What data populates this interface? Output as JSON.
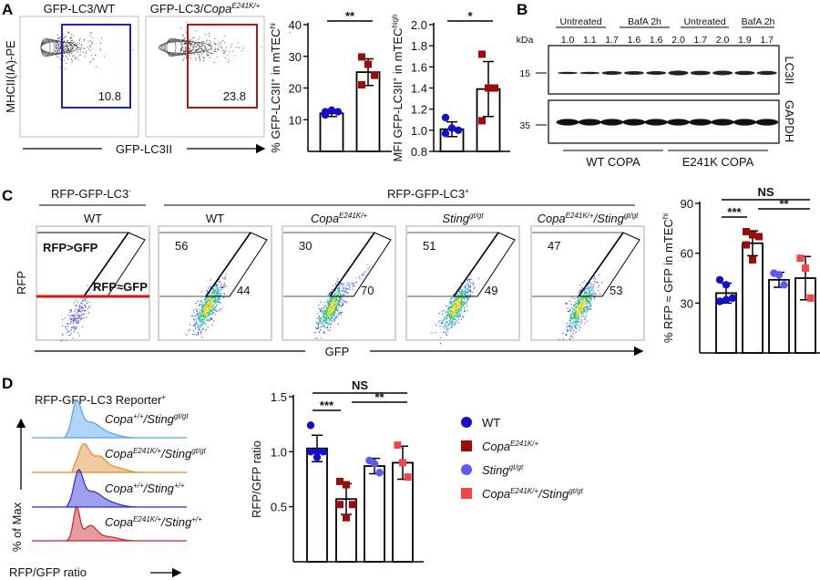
{
  "panels": {
    "A": "A",
    "B": "B",
    "C": "C",
    "D": "D"
  },
  "panelA": {
    "flow_titles": [
      {
        "base": "GFP-LC3/WT",
        "sup": ""
      },
      {
        "base": "GFP-LC3/",
        "italic": "Copa",
        "sup": "E241K/+"
      }
    ],
    "gate_values": [
      "10.8",
      "23.8"
    ],
    "gate_colors": [
      "#1f22c8",
      "#b01818"
    ],
    "xlabel": "GFP-LC3II",
    "ylabel": "MHCII(IA)-PE"
  },
  "panelB": {
    "treatments": [
      "Untreated",
      "BafA 2h",
      "Untreated",
      "BafA 2h"
    ],
    "kda_label": "kDa",
    "ratios": [
      "1.0",
      "1.1",
      "1.7",
      "1.6",
      "1.6",
      "2.0",
      "1.7",
      "2.0",
      "1.9",
      "1.7"
    ],
    "markers": [
      "15",
      "35"
    ],
    "blots": [
      "LC3II",
      "GAPDH"
    ],
    "groups": [
      "WT COPA",
      "E241K COPA"
    ]
  },
  "panelC": {
    "neg_header": {
      "base": "RFP-GFP-LC3",
      "sup": "-"
    },
    "pos_header": {
      "base": "RFP-GFP-LC3",
      "sup": "+"
    },
    "plot_titles": [
      {
        "a": "WT",
        "asup": "",
        "b": "",
        "bsup": ""
      },
      {
        "a": "WT",
        "asup": "",
        "b": "",
        "bsup": ""
      },
      {
        "a": "Copa",
        "asup": "E241K/+",
        "b": "",
        "bsup": ""
      },
      {
        "a": "Sting",
        "asup": "gt/gt",
        "b": "",
        "bsup": ""
      },
      {
        "a": "Copa",
        "asup": "E241K/+",
        "b": "/Sting",
        "bsup": "gt/gt"
      }
    ],
    "gate_labels": [
      "RFP>GFP",
      "RFP≈GFP"
    ],
    "upper_values": [
      "",
      "56",
      "30",
      "51",
      "47"
    ],
    "lower_values": [
      "",
      "44",
      "70",
      "49",
      "53"
    ],
    "xlabel": "GFP",
    "ylabel": "RFP"
  },
  "panelD": {
    "title": {
      "base": "RFP-GFP-LC3 Reporter",
      "sup": "+"
    },
    "histograms": [
      {
        "a": "Copa",
        "asup": "+/+",
        "b": "/Sting",
        "bsup": "gt/gt",
        "color": "#4da3f0"
      },
      {
        "a": "Copa",
        "asup": "E241K/+",
        "b": "/Sting",
        "bsup": "gt/gt",
        "color": "#e08a2c"
      },
      {
        "a": "Copa",
        "asup": "+/+",
        "b": "/Sting",
        "bsup": "+/+",
        "color": "#2a2ad8"
      },
      {
        "a": "Copa",
        "asup": "E241K/+",
        "b": "/Sting",
        "bsup": "+/+",
        "color": "#c0262e"
      }
    ],
    "ylabel": "% of Max",
    "xlabel": "RFP/GFP ratio"
  },
  "legend": [
    {
      "a": "WT",
      "asup": "",
      "b": "",
      "bsup": "",
      "shape": "circle",
      "color": "#1010c8"
    },
    {
      "a": "Copa",
      "asup": "E241K/+",
      "b": "",
      "bsup": "",
      "shape": "square",
      "color": "#9c0a0a"
    },
    {
      "a": "Sting",
      "asup": "gt/gt",
      "b": "",
      "bsup": "",
      "shape": "circle",
      "color": "#5a5af5"
    },
    {
      "a": "Copa",
      "asup": "E241K/+",
      "b": "/Sting",
      "bsup": "gt/gt",
      "shape": "square",
      "color": "#f04848"
    }
  ],
  "chart_data": [
    {
      "id": "A1",
      "type": "bar",
      "ylabel": "% GFP-LC3II+ in mTEChi",
      "ylabel_parts": {
        "a": "% GFP-LC3II",
        "asup": "+",
        "b": " in mTEC",
        "bsup": "hi"
      },
      "ylim": [
        0,
        40
      ],
      "yticks": [
        "10",
        "20",
        "30",
        "40"
      ],
      "ytick_values": [
        10,
        20,
        30,
        40
      ],
      "series": [
        {
          "mean": 12,
          "sd": 1,
          "points": [
            12.5,
            13,
            12.5,
            11.5
          ],
          "color": "#1010c8",
          "shape": "circle"
        },
        {
          "mean": 25,
          "sd": 4.2,
          "points": [
            29.8,
            27.5,
            24,
            21
          ],
          "color": "#9c0a0a",
          "shape": "square"
        }
      ],
      "significance": [
        {
          "from": 0,
          "to": 1,
          "label": "**"
        }
      ]
    },
    {
      "id": "A2",
      "type": "bar",
      "ylabel": "MFI GFP-LC3II+ in mTEChigh",
      "ylabel_parts": {
        "a": "MFI GFP-LC3II",
        "asup": "+",
        "b": " in mTEC",
        "bsup": "high"
      },
      "ylim": [
        0.8,
        2.0
      ],
      "yticks": [
        "0.8",
        "1.0",
        "1.2",
        "1.4",
        "1.6",
        "1.8",
        "2.0"
      ],
      "ytick_values": [
        0.8,
        1.0,
        1.2,
        1.4,
        1.6,
        1.8,
        2.0
      ],
      "series": [
        {
          "mean": 1.01,
          "sd": 0.07,
          "points": [
            1.12,
            1.02,
            1.0,
            0.97
          ],
          "color": "#1010c8",
          "shape": "circle"
        },
        {
          "mean": 1.39,
          "sd": 0.26,
          "points": [
            1.72,
            1.4,
            1.4,
            1.09
          ],
          "color": "#9c0a0a",
          "shape": "square"
        }
      ],
      "significance": [
        {
          "from": 0,
          "to": 1,
          "label": "*"
        }
      ]
    },
    {
      "id": "C",
      "type": "bar",
      "ylabel": "% RFP ≈ GFP in mTEChi",
      "ylabel_parts": {
        "a": "% RFP ≈ GFP in mTEC",
        "asup": "hi",
        "b": "",
        "bsup": ""
      },
      "ylim": [
        0,
        90
      ],
      "yticks": [
        "30",
        "60",
        "90"
      ],
      "ytick_values": [
        30,
        60,
        90
      ],
      "series": [
        {
          "mean": 36,
          "sd": 6,
          "points": [
            44,
            41,
            33,
            31,
            32
          ],
          "color": "#1010c8",
          "shape": "circle"
        },
        {
          "mean": 66,
          "sd": 7.5,
          "points": [
            73,
            71,
            70,
            65,
            56
          ],
          "color": "#9c0a0a",
          "shape": "square"
        },
        {
          "mean": 44,
          "sd": 4.5,
          "points": [
            48,
            47,
            41
          ],
          "color": "#5a5af5",
          "shape": "circle"
        },
        {
          "mean": 45,
          "sd": 13,
          "points": [
            57,
            51,
            33
          ],
          "color": "#f04848",
          "shape": "square"
        }
      ],
      "significance": [
        {
          "from": 0,
          "to": 3,
          "label": "NS",
          "level": 2
        },
        {
          "from": 1,
          "to": 3,
          "label": "**",
          "level": 1
        },
        {
          "from": 0,
          "to": 1,
          "label": "***",
          "level": 0
        }
      ]
    },
    {
      "id": "D",
      "type": "bar",
      "ylabel": "RFP/GFP ratio",
      "ylabel_parts": {
        "a": "RFP/GFP ratio",
        "asup": "",
        "b": "",
        "bsup": ""
      },
      "ylim": [
        0,
        1.5
      ],
      "yticks": [
        "0.5",
        "1.0",
        "1.5"
      ],
      "ytick_values": [
        0.5,
        1.0,
        1.5
      ],
      "series": [
        {
          "mean": 1.03,
          "sd": 0.12,
          "points": [
            1.24,
            1.0,
            1.0,
            1.0,
            0.95
          ],
          "color": "#1010c8",
          "shape": "circle"
        },
        {
          "mean": 0.57,
          "sd": 0.14,
          "points": [
            0.73,
            0.7,
            0.52,
            0.52,
            0.4
          ],
          "color": "#9c0a0a",
          "shape": "square"
        },
        {
          "mean": 0.87,
          "sd": 0.07,
          "points": [
            0.92,
            0.89,
            0.81
          ],
          "color": "#5a5af5",
          "shape": "circle"
        },
        {
          "mean": 0.9,
          "sd": 0.15,
          "points": [
            1.06,
            0.9,
            0.77
          ],
          "color": "#f04848",
          "shape": "square"
        }
      ],
      "significance": [
        {
          "from": 0,
          "to": 3,
          "label": "NS",
          "level": 2
        },
        {
          "from": 1,
          "to": 3,
          "label": "**",
          "level": 1
        },
        {
          "from": 0,
          "to": 1,
          "label": "***",
          "level": 0
        }
      ]
    }
  ]
}
